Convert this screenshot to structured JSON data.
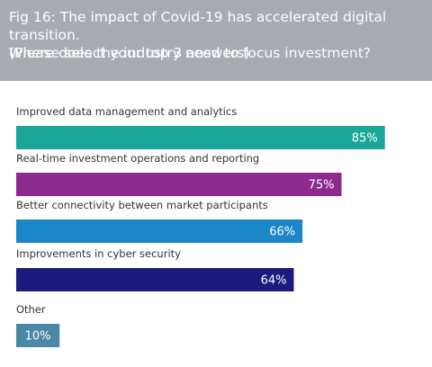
{
  "chart_data": {
    "type": "bar",
    "title": "Fig 16: The impact of Covid-19 has accelerated digital transition.\nWhere does the industry need to focus investment?",
    "subtitle": "(Please select your top 3 answers)",
    "categories": [
      "Improved data management and analytics",
      "Real-time investment operations and reporting",
      "Better connectivity between market participants",
      "Improvements in cyber security",
      "Other"
    ],
    "values": [
      85,
      75,
      66,
      64,
      10
    ],
    "value_labels": [
      "85%",
      "75%",
      "66%",
      "64%",
      "10%"
    ],
    "colors": [
      "#1aa79a",
      "#8e2a8e",
      "#1d86c9",
      "#1b1b7d",
      "#4b88a6"
    ]
  }
}
